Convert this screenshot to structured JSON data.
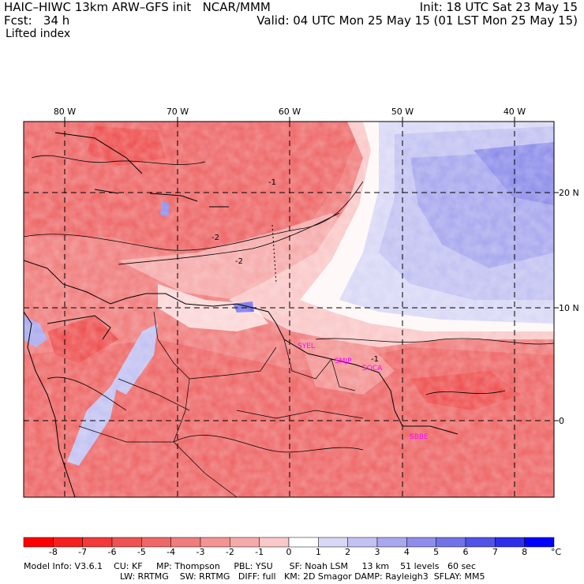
{
  "header": {
    "title": "HAIC–HIWC 13km ARW–GFS init   NCAR/MMM",
    "forecast": "Fcst:   34 h",
    "field": "Lifted index",
    "init": "Init: 18 UTC Sat 23 May 15",
    "valid": "Valid: 04 UTC Mon 25 May 15 (01 LST Mon 25 May 15)"
  },
  "map": {
    "lon_labels": [
      "80 W",
      "70 W",
      "60 W",
      "50 W",
      "40 W"
    ],
    "lat_labels": [
      "20 N",
      "10 N",
      "0"
    ],
    "contour_labels": [
      "-2",
      "-1",
      "-2",
      "-1"
    ],
    "station_labels": [
      "SYEL",
      "SMJP",
      "SOCA",
      "SBBE"
    ],
    "station_color": "#ff00ff"
  },
  "colorbar": {
    "labels": [
      "-8",
      "-7",
      "-6",
      "-5",
      "-4",
      "-3",
      "-2",
      "-1",
      "0",
      "1",
      "2",
      "3",
      "4",
      "5",
      "6",
      "7",
      "8"
    ],
    "unit": "°C",
    "colors": [
      "#ff0000",
      "#f81f1f",
      "#f23a3a",
      "#ee5252",
      "#ee6868",
      "#f07d7d",
      "#f39393",
      "#f6aaaa",
      "#fac8c8",
      "#ffffff",
      "#d8d8f6",
      "#c2c2f2",
      "#a8a8ee",
      "#8e8eea",
      "#7272e8",
      "#5252e6",
      "#2e2eea",
      "#0000ff"
    ]
  },
  "footer": {
    "line1": "Model Info: V3.6.1    CU: KF     MP: Thompson     PBL: YSU      SF: Noah LSM     13 km    51 levels   60 sec",
    "line2": "LW: RRTMG    SW: RRTMG   DIFF: full   KM: 2D Smagor DAMP: Rayleigh3  SFLAY: MM5"
  }
}
